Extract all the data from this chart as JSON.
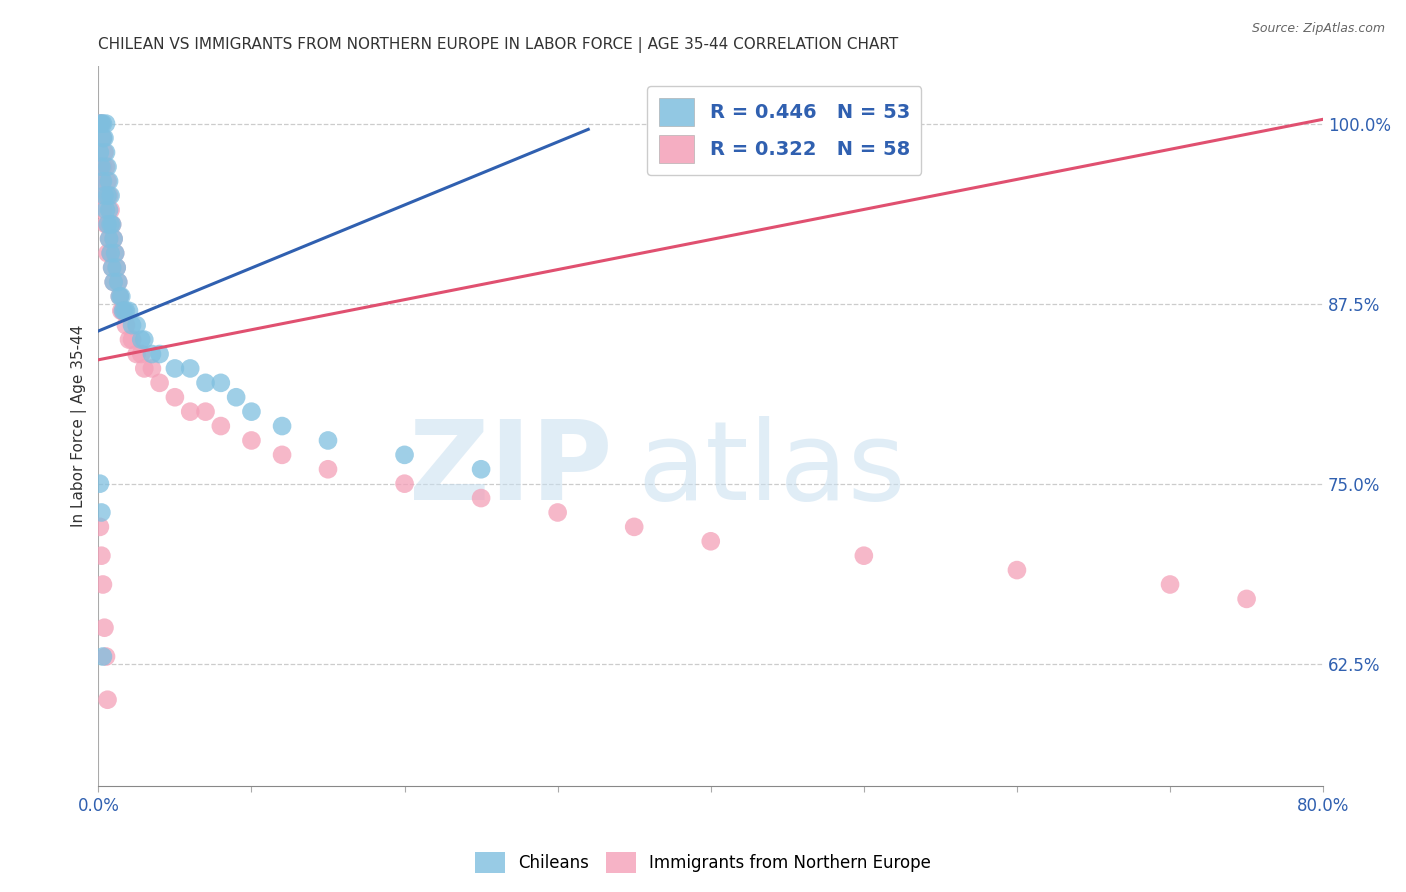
{
  "title": "CHILEAN VS IMMIGRANTS FROM NORTHERN EUROPE IN LABOR FORCE | AGE 35-44 CORRELATION CHART",
  "source": "Source: ZipAtlas.com",
  "ylabel": "In Labor Force | Age 35-44",
  "xlim": [
    0.0,
    0.8
  ],
  "ylim": [
    0.54,
    1.04
  ],
  "xticks": [
    0.0,
    0.1,
    0.2,
    0.3,
    0.4,
    0.5,
    0.6,
    0.7,
    0.8
  ],
  "xticklabels": [
    "0.0%",
    "",
    "",
    "",
    "",
    "",
    "",
    "",
    "80.0%"
  ],
  "yticks": [
    0.625,
    0.75,
    0.875,
    1.0
  ],
  "yticklabels": [
    "62.5%",
    "75.0%",
    "87.5%",
    "100.0%"
  ],
  "blue_color": "#7fbfdf",
  "pink_color": "#f4a0b8",
  "blue_line_color": "#3060b0",
  "pink_line_color": "#e05070",
  "R_blue": 0.446,
  "N_blue": 53,
  "R_pink": 0.322,
  "N_pink": 58,
  "blue_x": [
    0.001,
    0.001,
    0.002,
    0.002,
    0.003,
    0.003,
    0.003,
    0.004,
    0.004,
    0.005,
    0.005,
    0.005,
    0.006,
    0.006,
    0.006,
    0.007,
    0.007,
    0.007,
    0.008,
    0.008,
    0.008,
    0.009,
    0.009,
    0.01,
    0.01,
    0.011,
    0.012,
    0.013,
    0.014,
    0.015,
    0.016,
    0.017,
    0.018,
    0.02,
    0.022,
    0.025,
    0.028,
    0.03,
    0.035,
    0.04,
    0.05,
    0.06,
    0.07,
    0.08,
    0.09,
    0.1,
    0.12,
    0.15,
    0.2,
    0.25,
    0.001,
    0.002,
    0.003
  ],
  "blue_y": [
    1.0,
    0.98,
    1.0,
    0.97,
    1.0,
    0.99,
    0.96,
    0.99,
    0.95,
    1.0,
    0.98,
    0.94,
    0.97,
    0.95,
    0.93,
    0.96,
    0.94,
    0.92,
    0.95,
    0.93,
    0.91,
    0.93,
    0.9,
    0.92,
    0.89,
    0.91,
    0.9,
    0.89,
    0.88,
    0.88,
    0.87,
    0.87,
    0.87,
    0.87,
    0.86,
    0.86,
    0.85,
    0.85,
    0.84,
    0.84,
    0.83,
    0.83,
    0.82,
    0.82,
    0.81,
    0.8,
    0.79,
    0.78,
    0.77,
    0.76,
    0.75,
    0.73,
    0.63
  ],
  "pink_x": [
    0.001,
    0.001,
    0.002,
    0.002,
    0.003,
    0.003,
    0.003,
    0.004,
    0.004,
    0.005,
    0.005,
    0.006,
    0.006,
    0.006,
    0.007,
    0.007,
    0.008,
    0.008,
    0.009,
    0.009,
    0.01,
    0.01,
    0.011,
    0.012,
    0.013,
    0.014,
    0.015,
    0.016,
    0.018,
    0.02,
    0.022,
    0.025,
    0.028,
    0.03,
    0.035,
    0.04,
    0.05,
    0.06,
    0.07,
    0.08,
    0.1,
    0.12,
    0.15,
    0.2,
    0.25,
    0.3,
    0.35,
    0.4,
    0.5,
    0.6,
    0.7,
    0.75,
    0.001,
    0.002,
    0.003,
    0.004,
    0.005,
    0.006
  ],
  "pink_y": [
    1.0,
    0.97,
    1.0,
    0.96,
    0.99,
    0.97,
    0.94,
    0.98,
    0.95,
    0.97,
    0.93,
    0.96,
    0.93,
    0.91,
    0.95,
    0.92,
    0.94,
    0.91,
    0.93,
    0.9,
    0.92,
    0.89,
    0.91,
    0.9,
    0.89,
    0.88,
    0.87,
    0.87,
    0.86,
    0.85,
    0.85,
    0.84,
    0.84,
    0.83,
    0.83,
    0.82,
    0.81,
    0.8,
    0.8,
    0.79,
    0.78,
    0.77,
    0.76,
    0.75,
    0.74,
    0.73,
    0.72,
    0.71,
    0.7,
    0.69,
    0.68,
    0.67,
    0.72,
    0.7,
    0.68,
    0.65,
    0.63,
    0.6
  ],
  "blue_line_x": [
    0.0,
    0.32
  ],
  "blue_line_y": [
    0.856,
    0.996
  ],
  "pink_line_x": [
    0.0,
    0.8
  ],
  "pink_line_y": [
    0.836,
    1.003
  ],
  "watermark_zip": "ZIP",
  "watermark_atlas": "atlas"
}
